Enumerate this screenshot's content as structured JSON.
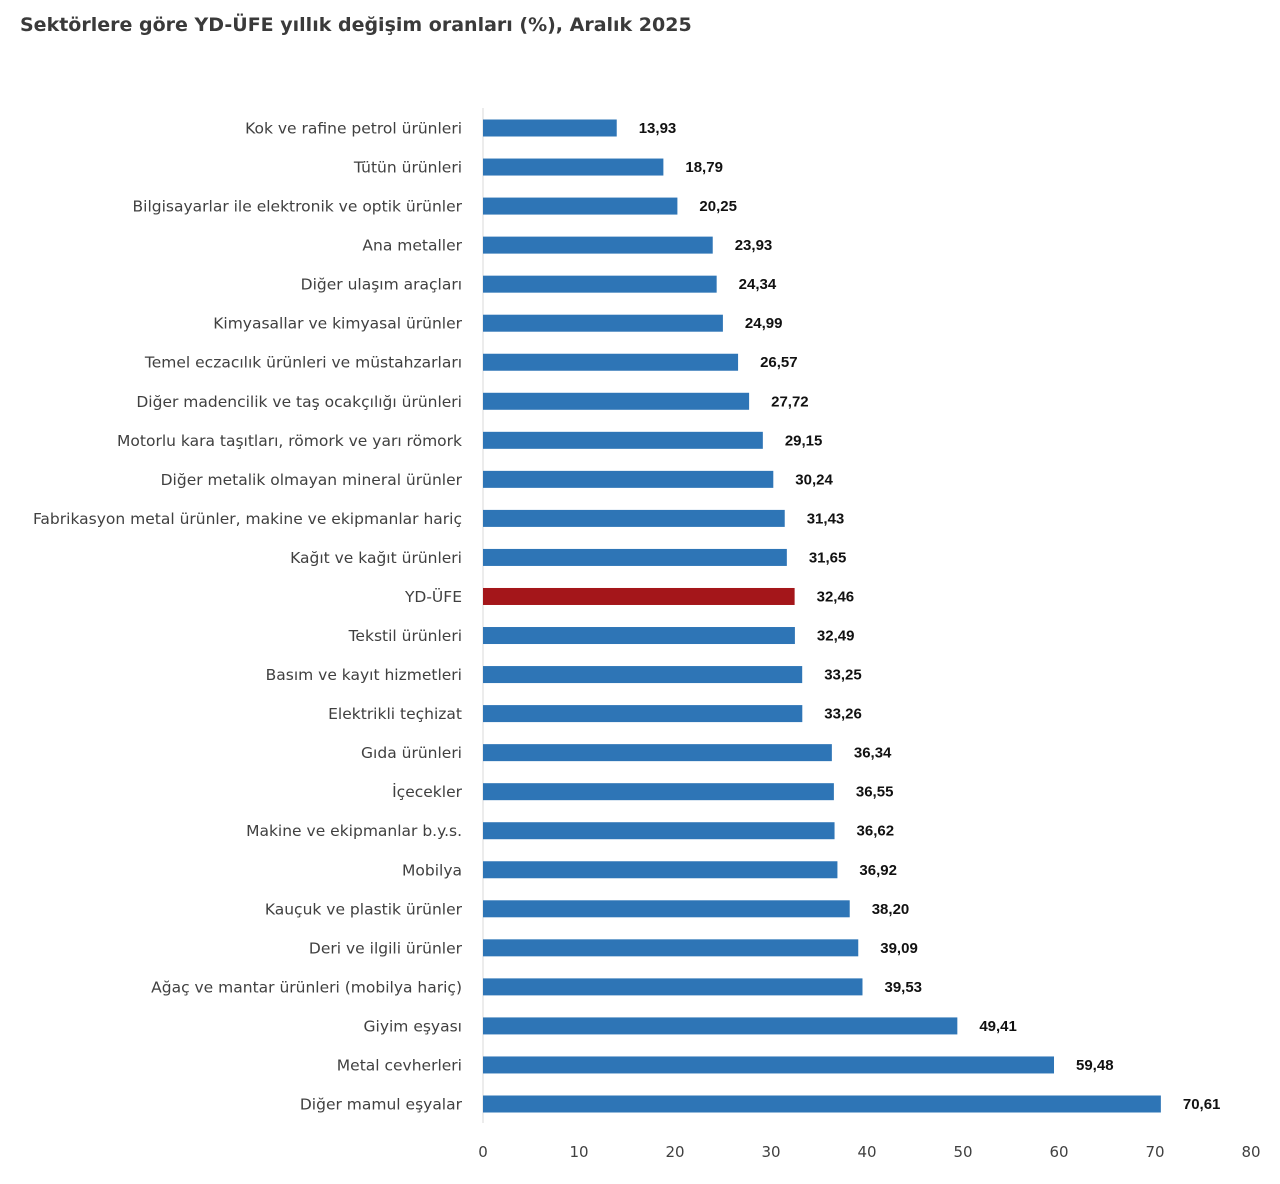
{
  "chart_data": {
    "type": "bar",
    "orientation": "horizontal",
    "title": "Sektörlere göre YD-ÜFE yıllık değişim oranları (%), Aralık 2025",
    "xlabel": "",
    "ylabel": "",
    "xlim": [
      0,
      80
    ],
    "x_ticks": [
      0,
      10,
      20,
      30,
      40,
      50,
      60,
      70,
      80
    ],
    "grid": false,
    "legend": "none",
    "bar_color": "#2e75b6",
    "highlight_color": "#a4161a",
    "highlight_category": "YD-ÜFE",
    "categories": [
      "Kok ve rafine petrol ürünleri",
      "Tütün ürünleri",
      "Bilgisayarlar ile elektronik ve optik ürünler",
      "Ana metaller",
      "Diğer ulaşım araçları",
      "Kimyasallar ve kimyasal ürünler",
      "Temel eczacılık ürünleri ve müstahzarları",
      "Diğer madencilik ve taş ocakçılığı ürünleri",
      "Motorlu kara taşıtları, römork ve yarı römork",
      "Diğer metalik olmayan mineral ürünler",
      "Fabrikasyon metal ürünler, makine ve ekipmanlar hariç",
      "Kağıt ve kağıt ürünleri",
      "YD-ÜFE",
      "Tekstil ürünleri",
      "Basım ve kayıt hizmetleri",
      "Elektrikli teçhizat",
      "Gıda ürünleri",
      "İçecekler",
      "Makine ve ekipmanlar b.y.s.",
      "Mobilya",
      "Kauçuk ve plastik ürünler",
      "Deri ve ilgili ürünler",
      "Ağaç ve mantar ürünleri (mobilya hariç)",
      "Giyim eşyası",
      "Metal cevherleri",
      "Diğer mamul eşyalar"
    ],
    "values": [
      13.93,
      18.79,
      20.25,
      23.93,
      24.34,
      24.99,
      26.57,
      27.72,
      29.15,
      30.24,
      31.43,
      31.65,
      32.46,
      32.49,
      33.25,
      33.26,
      36.34,
      36.55,
      36.62,
      36.92,
      38.2,
      39.09,
      39.53,
      49.41,
      59.48,
      70.61
    ],
    "value_labels": [
      "13,93",
      "18,79",
      "20,25",
      "23,93",
      "24,34",
      "24,99",
      "26,57",
      "27,72",
      "29,15",
      "30,24",
      "31,43",
      "31,65",
      "32,46",
      "32,49",
      "33,25",
      "33,26",
      "36,34",
      "36,55",
      "36,62",
      "36,92",
      "38,20",
      "39,09",
      "39,53",
      "49,41",
      "59,48",
      "70,61"
    ]
  }
}
